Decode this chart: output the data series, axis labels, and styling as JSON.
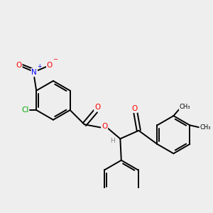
{
  "bg": "#eeeeee",
  "bond_color": "#000000",
  "atom_colors": {
    "O": "#ff0000",
    "N": "#0000ff",
    "Cl": "#00aa00",
    "H": "#888888"
  },
  "figsize": [
    3.0,
    3.0
  ],
  "dpi": 100,
  "xlim": [
    -0.5,
    9.5
  ],
  "ylim": [
    -3.5,
    4.5
  ]
}
